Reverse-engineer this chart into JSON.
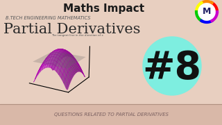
{
  "bg_color": "#e8cfc0",
  "title_text": "Maths Impact",
  "title_color": "#1a1a1a",
  "subtitle_small": "B.TECH ENGINEERING MATHEMATICS",
  "subtitle_large": "Partial Derivatives",
  "subtitle_small_color": "#5a5a5a",
  "subtitle_large_color": "#2a2a2a",
  "number_text": "#8",
  "number_bg_color": "#7eeee0",
  "bottom_text": "Questions related to partial derivatives",
  "bottom_text_color": "#7a6060",
  "bottom_bg_color": "#d9b8a8",
  "separator_color": "#b09080",
  "surface_color_main": "#cc44cc",
  "surface_color_edge": "#aa00aa",
  "colors_ring": [
    "#ff0000",
    "#ff8800",
    "#ffff00",
    "#00cc00",
    "#0000ff",
    "#cc00cc"
  ]
}
